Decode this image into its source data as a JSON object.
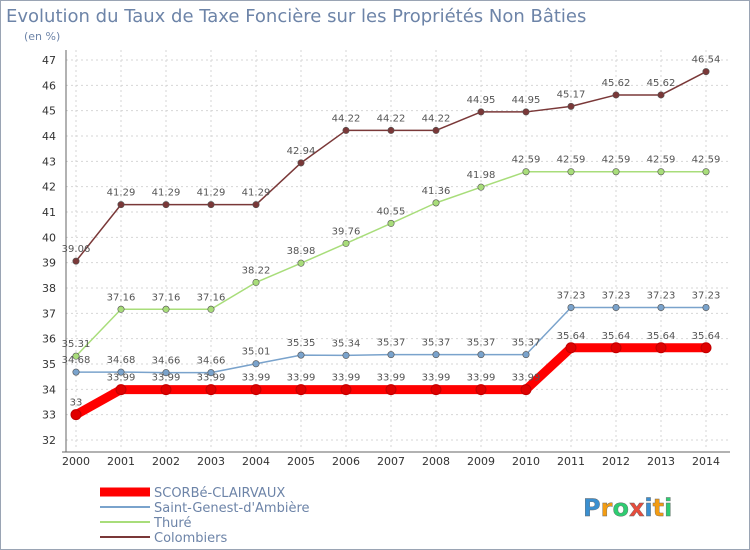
{
  "chart_data": {
    "type": "line",
    "title": "Evolution du Taux de Taxe Foncière sur les Propriétés Non Bâties",
    "ylabel": "(en %)",
    "xlabel": "",
    "ylim": [
      32,
      47
    ],
    "yticks": [
      32,
      33,
      34,
      35,
      36,
      37,
      38,
      39,
      40,
      41,
      42,
      43,
      44,
      45,
      46,
      47
    ],
    "x": [
      "2000",
      "2001",
      "2002",
      "2003",
      "2004",
      "2005",
      "2006",
      "2007",
      "2008",
      "2009",
      "2010",
      "2011",
      "2012",
      "2013",
      "2014"
    ],
    "grid": true,
    "legend_position": "bottom-left",
    "series": [
      {
        "name": "SCORBé-CLAIRVAUX",
        "color": "#ff0000",
        "values": [
          33,
          33.99,
          33.99,
          33.99,
          33.99,
          33.99,
          33.99,
          33.99,
          33.99,
          33.99,
          33.99,
          35.64,
          35.64,
          35.64,
          35.64
        ],
        "labels": [
          "33",
          "33.99",
          "33.99",
          "33.99",
          "33.99",
          "33.99",
          "33.99",
          "33.99",
          "33.99",
          "33.99",
          "33.99",
          "35.64",
          "35.64",
          "35.64",
          "35.64"
        ]
      },
      {
        "name": "Saint-Genest-d'Ambière",
        "color": "#7aa3cc",
        "values": [
          34.68,
          34.68,
          34.66,
          34.66,
          35.01,
          35.35,
          35.34,
          35.37,
          35.37,
          35.37,
          35.37,
          37.23,
          37.23,
          37.23,
          37.23
        ],
        "labels": [
          "34.68",
          "34.68",
          "34.66",
          "34.66",
          "35.01",
          "35.35",
          "35.34",
          "35.37",
          "35.37",
          "35.37",
          "35.37",
          "37.23",
          "37.23",
          "37.23",
          "37.23"
        ]
      },
      {
        "name": "Thuré",
        "color": "#a8dd7a",
        "values": [
          35.31,
          37.16,
          37.16,
          37.16,
          38.22,
          38.98,
          39.76,
          40.55,
          41.36,
          41.98,
          42.59,
          42.59,
          42.59,
          42.59,
          42.59
        ],
        "labels": [
          "35.31",
          "37.16",
          "37.16",
          "37.16",
          "38.22",
          "38.98",
          "39.76",
          "40.55",
          "41.36",
          "41.98",
          "42.59",
          "42.59",
          "42.59",
          "42.59",
          "42.59"
        ]
      },
      {
        "name": "Colombiers",
        "color": "#7a3838",
        "values": [
          39.06,
          41.29,
          41.29,
          41.29,
          41.29,
          42.94,
          44.22,
          44.22,
          44.22,
          44.95,
          44.95,
          45.17,
          45.62,
          45.62,
          46.54
        ],
        "labels": [
          "39.06",
          "41.29",
          "41.29",
          "41.29",
          "41.29",
          "42.94",
          "44.22",
          "44.22",
          "44.22",
          "44.95",
          "44.95",
          "45.17",
          "45.62",
          "45.62",
          "46.54"
        ]
      }
    ]
  },
  "logo": {
    "letters": [
      "P",
      "r",
      "o",
      "x",
      "i",
      "t",
      "i"
    ],
    "colors": [
      "#3a8fd0",
      "#f39c12",
      "#2ecc71",
      "#e74c3c",
      "#3a8fd0",
      "#f39c12",
      "#2ecc71"
    ]
  }
}
